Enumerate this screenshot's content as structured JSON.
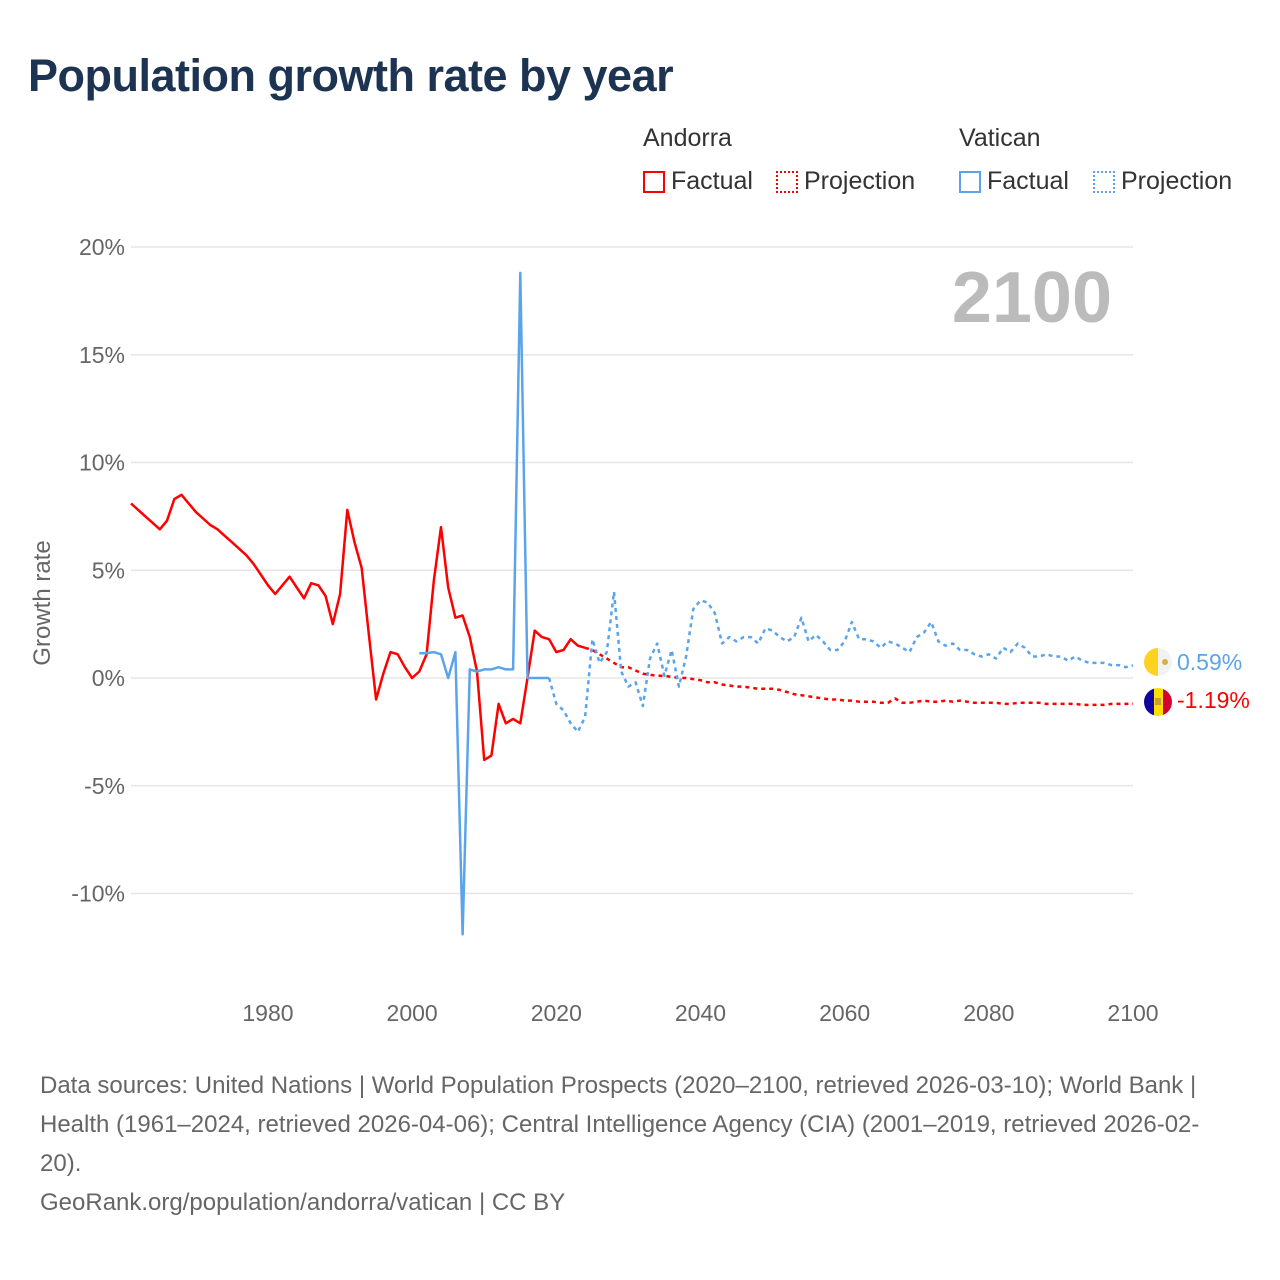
{
  "title": "Population growth rate by year",
  "legend": {
    "groups": [
      {
        "name": "Andorra",
        "factual": "Factual",
        "projection": "Projection",
        "color": "#ff0000"
      },
      {
        "name": "Vatican",
        "factual": "Factual",
        "projection": "Projection",
        "color": "#5ba4ea"
      }
    ]
  },
  "year_label": "2100",
  "end_labels": {
    "vatican": "0.59%",
    "andorra": "-1.19%"
  },
  "footer": {
    "sources": "Data sources: United Nations | World Population Prospects (2020–2100, retrieved 2026-03-10); World Bank | Health (1961–2024, retrieved 2026-04-06); Central Intelligence Agency (CIA) (2001–2019, retrieved 2026-02-20).",
    "credit": "GeoRank.org/population/andorra/vatican | CC BY"
  },
  "chart_data": {
    "type": "line",
    "title": "Population growth rate by year",
    "xlabel": "",
    "ylabel": "Growth rate",
    "xlim": [
      1961,
      2100
    ],
    "ylim": [
      -12.5,
      20
    ],
    "x_ticks": [
      1980,
      2000,
      2020,
      2040,
      2060,
      2080,
      2100
    ],
    "x_tick_labels": [
      "1980",
      "2000",
      "2020",
      "2040",
      "2060",
      "2080",
      "2100"
    ],
    "y_ticks": [
      20,
      15,
      10,
      5,
      0,
      -5,
      -10
    ],
    "y_tick_labels": [
      "20%",
      "15%",
      "10%",
      "5%",
      "0%",
      "-5%",
      "-10%"
    ],
    "grid": true,
    "legend_position": "top-right",
    "series": [
      {
        "name": "Andorra Factual",
        "color": "#ff0000",
        "style": "solid",
        "start": 1961,
        "values": [
          8.1,
          7.8,
          7.5,
          7.2,
          6.9,
          7.3,
          8.3,
          8.5,
          8.1,
          7.7,
          7.4,
          7.1,
          6.9,
          6.6,
          6.3,
          6.0,
          5.7,
          5.3,
          4.8,
          4.3,
          3.9,
          4.3,
          4.7,
          4.2,
          3.7,
          4.4,
          4.3,
          3.8,
          2.5,
          3.9,
          7.8,
          6.3,
          5.1,
          2.0,
          -1.0,
          0.2,
          1.2,
          1.1,
          0.5,
          0.0,
          0.3,
          1.1,
          4.5,
          7.0,
          4.2,
          2.8,
          2.9,
          1.9,
          0.3,
          -3.8,
          -3.6,
          -1.2,
          -2.1,
          -1.9,
          -2.1,
          0.0,
          2.2,
          1.9,
          1.8,
          1.2,
          1.3,
          1.8,
          1.5,
          1.4
        ]
      },
      {
        "name": "Andorra Projection",
        "color": "#ff0000",
        "style": "dotted",
        "start": 2024,
        "values": [
          1.4,
          1.3,
          1.1,
          0.9,
          0.7,
          0.5,
          0.5,
          0.35,
          0.2,
          0.15,
          0.1,
          0.1,
          0.05,
          0.0,
          0.0,
          -0.05,
          -0.1,
          -0.2,
          -0.2,
          -0.3,
          -0.35,
          -0.4,
          -0.4,
          -0.45,
          -0.5,
          -0.5,
          -0.5,
          -0.55,
          -0.65,
          -0.75,
          -0.8,
          -0.85,
          -0.9,
          -0.95,
          -1.0,
          -1.0,
          -1.05,
          -1.05,
          -1.1,
          -1.1,
          -1.1,
          -1.15,
          -1.15,
          -0.95,
          -1.15,
          -1.15,
          -1.1,
          -1.05,
          -1.1,
          -1.1,
          -1.05,
          -1.1,
          -1.05,
          -1.1,
          -1.15,
          -1.15,
          -1.15,
          -1.15,
          -1.2,
          -1.2,
          -1.15,
          -1.15,
          -1.15,
          -1.15,
          -1.2,
          -1.2,
          -1.2,
          -1.2,
          -1.2,
          -1.25,
          -1.25,
          -1.25,
          -1.25,
          -1.2,
          -1.2,
          -1.2,
          -1.19
        ]
      },
      {
        "name": "Vatican Factual",
        "color": "#5ba4ea",
        "style": "solid",
        "start": 2001,
        "values": [
          1.15,
          1.15,
          1.2,
          1.1,
          0.0,
          1.2,
          -11.9,
          0.4,
          0.3,
          0.4,
          0.4,
          0.5,
          0.4,
          0.4,
          18.8,
          0.0,
          0.0,
          0.0,
          0.0
        ]
      },
      {
        "name": "Vatican Projection",
        "color": "#5ba4ea",
        "style": "dotted",
        "start": 2019,
        "values": [
          0.0,
          -1.2,
          -1.5,
          -2.1,
          -2.5,
          -1.8,
          1.8,
          0.7,
          1.2,
          4.0,
          0.3,
          -0.4,
          -0.2,
          -1.3,
          0.9,
          1.6,
          0.1,
          1.3,
          -0.4,
          1.0,
          3.2,
          3.6,
          3.5,
          3.0,
          1.6,
          1.9,
          1.7,
          1.9,
          1.9,
          1.6,
          2.3,
          2.2,
          1.9,
          1.7,
          1.9,
          2.8,
          1.7,
          2.0,
          1.7,
          1.3,
          1.3,
          1.7,
          2.6,
          1.8,
          1.8,
          1.7,
          1.4,
          1.7,
          1.6,
          1.4,
          1.2,
          1.9,
          2.1,
          2.6,
          1.7,
          1.5,
          1.6,
          1.3,
          1.3,
          1.1,
          1.0,
          1.1,
          0.9,
          1.4,
          1.2,
          1.6,
          1.4,
          1.0,
          1.0,
          1.1,
          1.0,
          1.0,
          0.8,
          1.0,
          0.8,
          0.7,
          0.7,
          0.7,
          0.6,
          0.6,
          0.5,
          0.59
        ]
      }
    ]
  }
}
